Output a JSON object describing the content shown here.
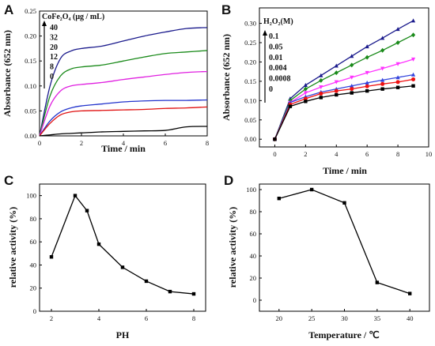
{
  "chart_data": [
    {
      "panel": "A",
      "type": "line",
      "xlabel": "Time / min",
      "ylabel": "Absorbance (652 nm)",
      "xlim": [
        0,
        8
      ],
      "ylim": [
        0,
        0.25
      ],
      "xticks": [
        "0",
        "2",
        "4",
        "6",
        "8"
      ],
      "yticks": [
        "0.00",
        "0.05",
        "0.10",
        "0.15",
        "0.20",
        "0.25"
      ],
      "legend_title": "CoFe₂O₄ (μg / mL)",
      "legend_entries": [
        "40",
        "32",
        "20",
        "12",
        "8",
        "0"
      ],
      "x": [
        0,
        0.5,
        1,
        1.5,
        2,
        3,
        4,
        5,
        6,
        7,
        8
      ],
      "series": [
        {
          "name": "40",
          "color": "#1a1a8c",
          "values": [
            0,
            0.1,
            0.155,
            0.17,
            0.175,
            0.18,
            0.19,
            0.2,
            0.208,
            0.215,
            0.217
          ]
        },
        {
          "name": "32",
          "color": "#1a8a1a",
          "values": [
            0,
            0.08,
            0.12,
            0.134,
            0.138,
            0.142,
            0.15,
            0.158,
            0.165,
            0.168,
            0.171
          ]
        },
        {
          "name": "20",
          "color": "#e020e0",
          "values": [
            0,
            0.06,
            0.09,
            0.1,
            0.103,
            0.107,
            0.113,
            0.118,
            0.123,
            0.127,
            0.129
          ]
        },
        {
          "name": "12",
          "color": "#2233cc",
          "values": [
            0,
            0.03,
            0.048,
            0.056,
            0.06,
            0.064,
            0.068,
            0.07,
            0.071,
            0.071,
            0.072
          ]
        },
        {
          "name": "8",
          "color": "#e01010",
          "values": [
            0,
            0.025,
            0.042,
            0.048,
            0.05,
            0.051,
            0.052,
            0.053,
            0.055,
            0.056,
            0.058
          ]
        },
        {
          "name": "0",
          "color": "#000000",
          "values": [
            0,
            0.002,
            0.004,
            0.005,
            0.006,
            0.008,
            0.009,
            0.01,
            0.011,
            0.018,
            0.019
          ]
        }
      ]
    },
    {
      "panel": "B",
      "type": "line",
      "xlabel": "Time / min",
      "ylabel": "Absorbance (652 nm)",
      "xlim": [
        -1,
        10
      ],
      "ylim": [
        -0.02,
        0.34
      ],
      "xticks": [
        "0",
        "2",
        "4",
        "6",
        "8",
        "10"
      ],
      "yticks": [
        "0.00",
        "0.05",
        "0.10",
        "0.15",
        "0.20",
        "0.25",
        "0.30"
      ],
      "legend_title": "H₂O₂(M)",
      "legend_entries": [
        "0.1",
        "0.05",
        "0.01",
        "0.004",
        "0.0008",
        "0"
      ],
      "x": [
        0,
        1,
        2,
        3,
        4,
        5,
        6,
        7,
        8,
        9
      ],
      "series": [
        {
          "name": "0.1",
          "color": "#1a1a8c",
          "marker": "triangle",
          "values": [
            0,
            0.105,
            0.14,
            0.165,
            0.19,
            0.215,
            0.24,
            0.262,
            0.285,
            0.307
          ]
        },
        {
          "name": "0.05",
          "color": "#1a8a1a",
          "marker": "diamond",
          "values": [
            0,
            0.1,
            0.13,
            0.152,
            0.172,
            0.192,
            0.212,
            0.23,
            0.25,
            0.27
          ]
        },
        {
          "name": "0.01",
          "color": "#ff33ff",
          "marker": "triangle-down",
          "values": [
            0,
            0.095,
            0.12,
            0.135,
            0.148,
            0.16,
            0.172,
            0.183,
            0.195,
            0.207
          ]
        },
        {
          "name": "0.004",
          "color": "#3344dd",
          "marker": "triangle",
          "values": [
            0,
            0.095,
            0.11,
            0.122,
            0.13,
            0.138,
            0.146,
            0.153,
            0.16,
            0.167
          ]
        },
        {
          "name": "0.0008",
          "color": "#ee1111",
          "marker": "circle",
          "values": [
            0,
            0.09,
            0.105,
            0.118,
            0.125,
            0.13,
            0.137,
            0.143,
            0.148,
            0.155
          ]
        },
        {
          "name": "0",
          "color": "#000000",
          "marker": "square",
          "values": [
            0,
            0.085,
            0.098,
            0.108,
            0.115,
            0.12,
            0.125,
            0.13,
            0.134,
            0.138
          ]
        }
      ]
    },
    {
      "panel": "C",
      "type": "line",
      "xlabel": "PH",
      "ylabel": "relative activity (%)",
      "xlim": [
        1.5,
        8.5
      ],
      "ylim": [
        0,
        110
      ],
      "xticks": [
        "2",
        "4",
        "6",
        "8"
      ],
      "yticks": [
        "0",
        "20",
        "40",
        "60",
        "80",
        "100"
      ],
      "x": [
        2,
        3,
        3.5,
        4,
        5,
        6,
        7,
        8
      ],
      "values": [
        47,
        100,
        87,
        58,
        38,
        26,
        17,
        15
      ]
    },
    {
      "panel": "D",
      "type": "line",
      "xlabel": "Temperature / ℃",
      "ylabel": "relative activity (%)",
      "xlim": [
        17,
        43
      ],
      "ylim": [
        -10,
        105
      ],
      "xticks": [
        "20",
        "25",
        "30",
        "35",
        "40"
      ],
      "yticks": [
        "0",
        "20",
        "40",
        "60",
        "80",
        "100"
      ],
      "x": [
        20,
        25,
        30,
        35,
        40
      ],
      "values": [
        92,
        100,
        88,
        16,
        6
      ]
    }
  ]
}
